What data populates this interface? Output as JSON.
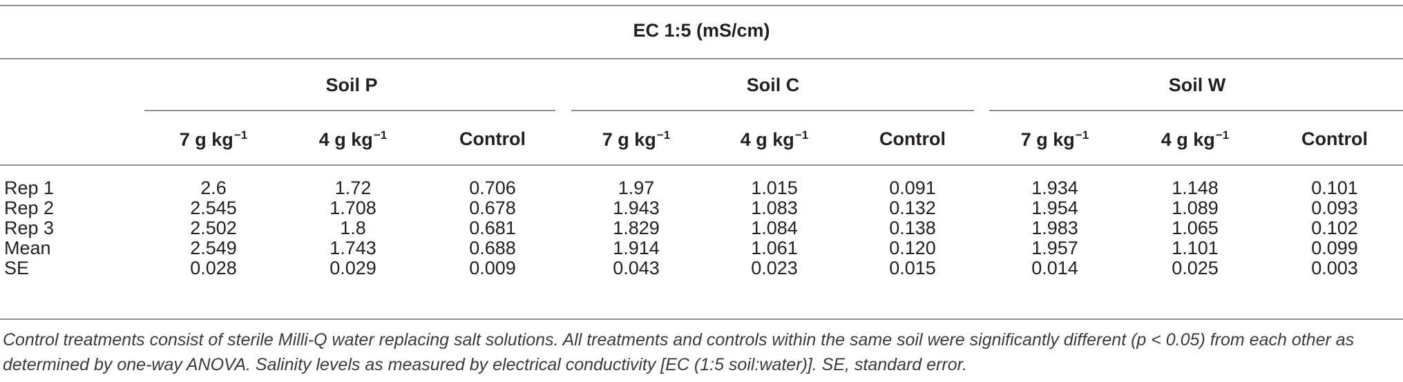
{
  "table": {
    "title": "EC 1:5 (mS/cm)",
    "groups": [
      {
        "name": "Soil P",
        "cols": [
          "7 g kg",
          "4 g kg",
          "Control"
        ]
      },
      {
        "name": "Soil C",
        "cols": [
          "7 g kg",
          "4 g kg",
          "Control"
        ]
      },
      {
        "name": "Soil W",
        "cols": [
          "7 g kg",
          "4 g kg",
          "Control"
        ]
      }
    ],
    "unit_exponent": "−1",
    "rows": [
      {
        "label": "Rep 1",
        "values": [
          "2.6",
          "1.72",
          "0.706",
          "1.97",
          "1.015",
          "0.091",
          "1.934",
          "1.148",
          "0.101"
        ]
      },
      {
        "label": "Rep 2",
        "values": [
          "2.545",
          "1.708",
          "0.678",
          "1.943",
          "1.083",
          "0.132",
          "1.954",
          "1.089",
          "0.093"
        ]
      },
      {
        "label": "Rep 3",
        "values": [
          "2.502",
          "1.8",
          "0.681",
          "1.829",
          "1.084",
          "0.138",
          "1.983",
          "1.065",
          "0.102"
        ]
      },
      {
        "label": "Mean",
        "values": [
          "2.549",
          "1.743",
          "0.688",
          "1.914",
          "1.061",
          "0.120",
          "1.957",
          "1.101",
          "0.099"
        ]
      },
      {
        "label": "SE",
        "values": [
          "0.028",
          "0.029",
          "0.009",
          "0.043",
          "0.023",
          "0.015",
          "0.014",
          "0.025",
          "0.003"
        ]
      }
    ]
  },
  "footnote": {
    "line1": "Control treatments consist of sterile Milli-Q water replacing salt solutions. All treatments and controls within the same soil were significantly different (p < 0.05) from each other as",
    "line2": "determined by one-way ANOVA. Salinity levels as measured by electrical conductivity [EC (1:5 soil:water)]. SE, standard error."
  }
}
